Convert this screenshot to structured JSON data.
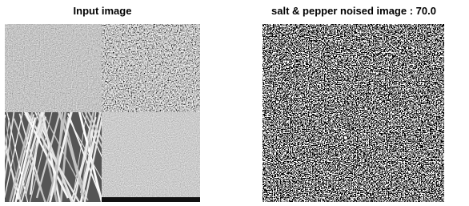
{
  "panels": [
    {
      "title": "Input image"
    },
    {
      "title": "salt & pepper noised image : 70.0"
    }
  ]
}
